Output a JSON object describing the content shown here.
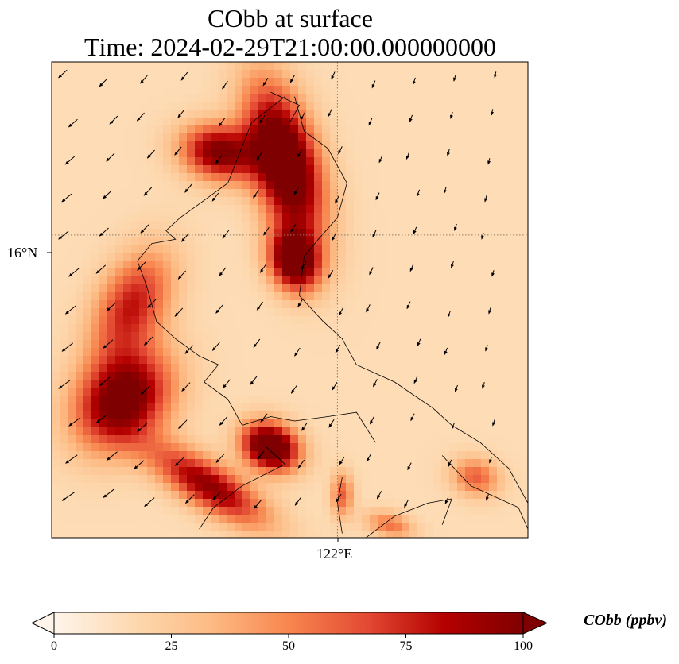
{
  "title": {
    "line1": "CObb at surface",
    "line2": "Time: 2024-02-29T21:00:00.000000000"
  },
  "colors": {
    "cmap": [
      "#fff5eb",
      "#fdd9b0",
      "#fdbb84",
      "#f8864f",
      "#e34a33",
      "#b40000",
      "#7f0000"
    ],
    "coastline": "#000000",
    "gridline": "#8a7a6a",
    "arrow": "#000000"
  },
  "chart_data": {
    "type": "heatmap",
    "variable": "CObb",
    "level": "surface",
    "time": "2024-02-29T21:00:00.000000000",
    "map_extent": {
      "lon": [
        119.0,
        124.0
      ],
      "lat": [
        12.5,
        18.0
      ]
    },
    "x_ticks": [
      {
        "value": 122,
        "label": "122°E"
      }
    ],
    "y_ticks": [
      {
        "value": 16,
        "label": "16°N"
      }
    ],
    "grid": "dotted lines at 122°E and 16°N",
    "colorbar": {
      "label": "CObb (ppbv)",
      "range": [
        0,
        100
      ],
      "ticks": [
        0,
        25,
        50,
        75,
        100
      ],
      "extend": "both",
      "colormap": "OrRd"
    },
    "background_ppbv": 15,
    "plumes": [
      {
        "lon": 121.45,
        "lat": 16.85,
        "peak_ppbv": 100
      },
      {
        "lon": 120.75,
        "lat": 16.95,
        "peak_ppbv": 75
      },
      {
        "lon": 121.55,
        "lat": 15.7,
        "peak_ppbv": 90
      },
      {
        "lon": 119.75,
        "lat": 14.1,
        "peak_ppbv": 85
      },
      {
        "lon": 119.85,
        "lat": 15.2,
        "peak_ppbv": 55
      },
      {
        "lon": 121.3,
        "lat": 13.55,
        "peak_ppbv": 100
      },
      {
        "lon": 120.65,
        "lat": 13.1,
        "peak_ppbv": 70
      },
      {
        "lon": 122.05,
        "lat": 13.0,
        "peak_ppbv": 40
      },
      {
        "lon": 123.45,
        "lat": 13.2,
        "peak_ppbv": 40
      },
      {
        "lon": 122.55,
        "lat": 12.65,
        "peak_ppbv": 35
      }
    ],
    "wind_vectors": "northeasterly flow; westward over the east, southwestward over the west"
  }
}
